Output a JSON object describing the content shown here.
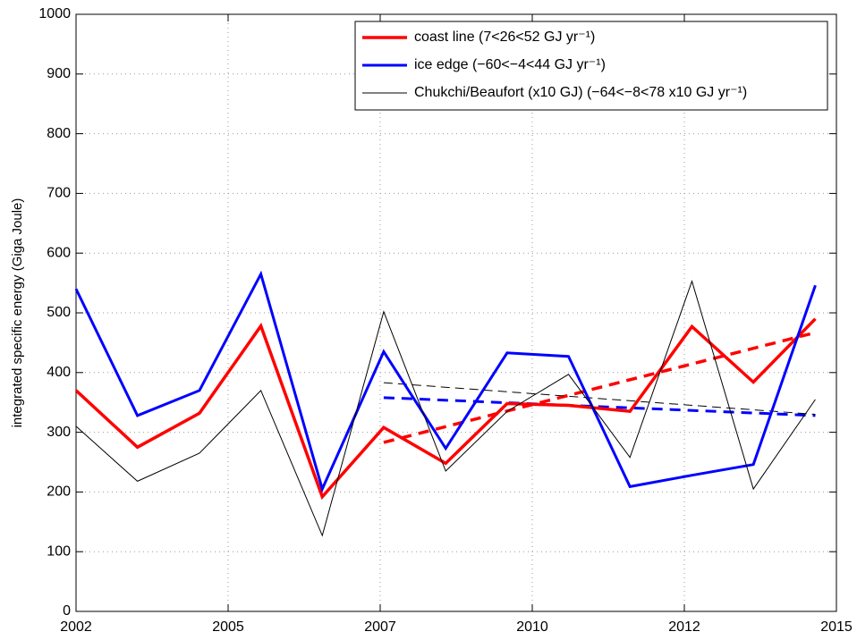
{
  "chart_data": {
    "type": "line",
    "y_label": "integrated specific energy (Giga Joule)",
    "x": [
      2002,
      2003.05,
      2004.11,
      2005.16,
      2006.21,
      2007.26,
      2008.32,
      2009.37,
      2010.42,
      2011.47,
      2012.53,
      2013.58,
      2014.64
    ],
    "series": [
      {
        "name": "coast line (7<26<52 GJ yr⁻¹)",
        "color": "#ff0000",
        "values": [
          370,
          275,
          332,
          478,
          192,
          308,
          248,
          348,
          345,
          335,
          477,
          384,
          490
        ]
      },
      {
        "name": "ice edge (−60<−4<44 GJ yr⁻¹)",
        "color": "#0000ff",
        "values": [
          540,
          328,
          370,
          565,
          205,
          435,
          273,
          433,
          427,
          209,
          228,
          246,
          546
        ]
      },
      {
        "name": "Chukchi/Beaufort (x10 GJ) (−64<−8<78 x10 GJ yr⁻¹)",
        "color": "#000000",
        "values": [
          310,
          218,
          265,
          370,
          127,
          502,
          235,
          335,
          397,
          258,
          553,
          205,
          355
        ]
      }
    ],
    "trend_lines": [
      {
        "color": "#ff0000",
        "x": [
          2007.26,
          2014.64
        ],
        "values": [
          283,
          467
        ]
      },
      {
        "color": "#0000ff",
        "x": [
          2007.26,
          2014.64
        ],
        "values": [
          358,
          328
        ]
      },
      {
        "color": "#000000",
        "x": [
          2007.26,
          2014.64
        ],
        "values": [
          383,
          330
        ]
      }
    ],
    "xlim": [
      2002,
      2015
    ],
    "xticks": [
      2002,
      {
        "value": 2004.6,
        "label": "2005"
      },
      {
        "value": 2007.2,
        "label": "2007"
      },
      {
        "value": 2009.8,
        "label": "2010"
      },
      {
        "value": 2012.4,
        "label": "2012"
      },
      2015
    ],
    "ylim": [
      0,
      1000
    ],
    "yticks": [
      0,
      100,
      200,
      300,
      400,
      500,
      600,
      700,
      800,
      900,
      1000
    ],
    "grid": true,
    "legend": "upper right"
  }
}
